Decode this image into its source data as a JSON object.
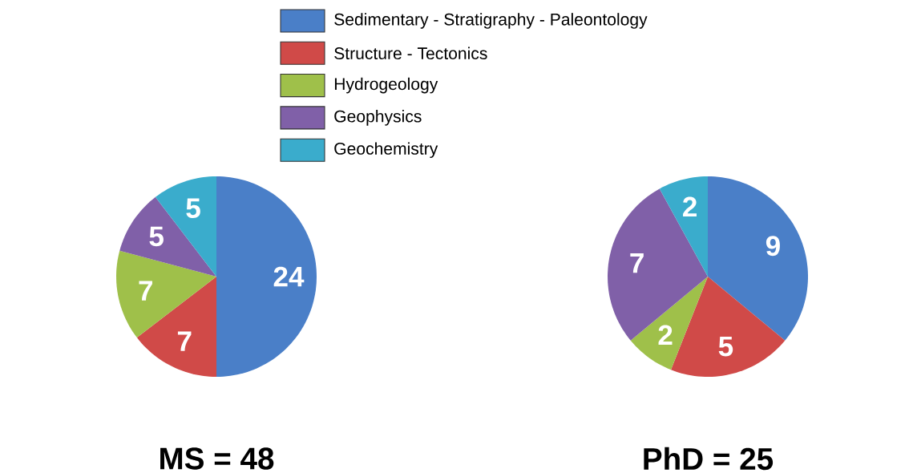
{
  "chart_data": [
    {
      "type": "pie",
      "title": "MS = 48",
      "categories": [
        "Sedimentary - Stratigraphy - Paleontology",
        "Structure - Tectonics",
        "Hydrogeology",
        "Geophysics",
        "Geochemistry"
      ],
      "values": [
        24,
        7,
        7,
        5,
        5
      ],
      "colors": [
        "#4a7fc8",
        "#d04a48",
        "#9fc04a",
        "#8060a8",
        "#3aaccc"
      ],
      "data_labels": true,
      "legend": "top"
    },
    {
      "type": "pie",
      "title": "PhD = 25",
      "categories": [
        null,
        null,
        null,
        null,
        null
      ],
      "values": [
        9,
        5,
        2,
        7,
        2
      ],
      "colors": [
        "#4a7fc8",
        "#d04a48",
        "#9fc04a",
        "#8060a8",
        "#3aaccc"
      ],
      "data_labels": true
    }
  ]
}
